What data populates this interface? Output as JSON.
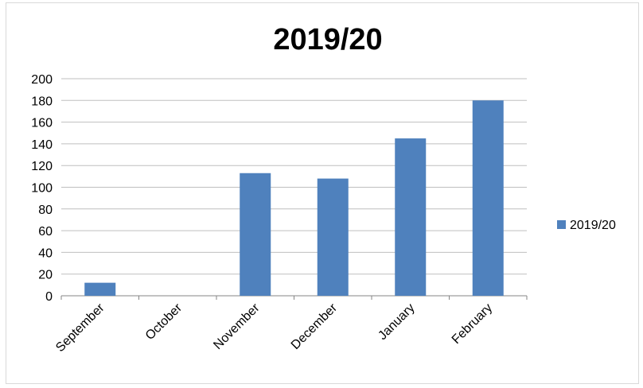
{
  "chart_data": {
    "type": "bar",
    "title": "2019/20",
    "xlabel": "",
    "ylabel": "",
    "categories": [
      "September",
      "October",
      "November",
      "December",
      "January",
      "February"
    ],
    "series": [
      {
        "name": "2019/20",
        "values": [
          12,
          0,
          113,
          108,
          145,
          180
        ]
      }
    ],
    "ylim": [
      0,
      200
    ],
    "yticks": [
      0,
      20,
      40,
      60,
      80,
      100,
      120,
      140,
      160,
      180,
      200
    ],
    "grid": true,
    "legend": "right",
    "colors": {
      "bar": "#4f81bd",
      "grid": "#bfbfbf",
      "axis": "#868686"
    }
  }
}
